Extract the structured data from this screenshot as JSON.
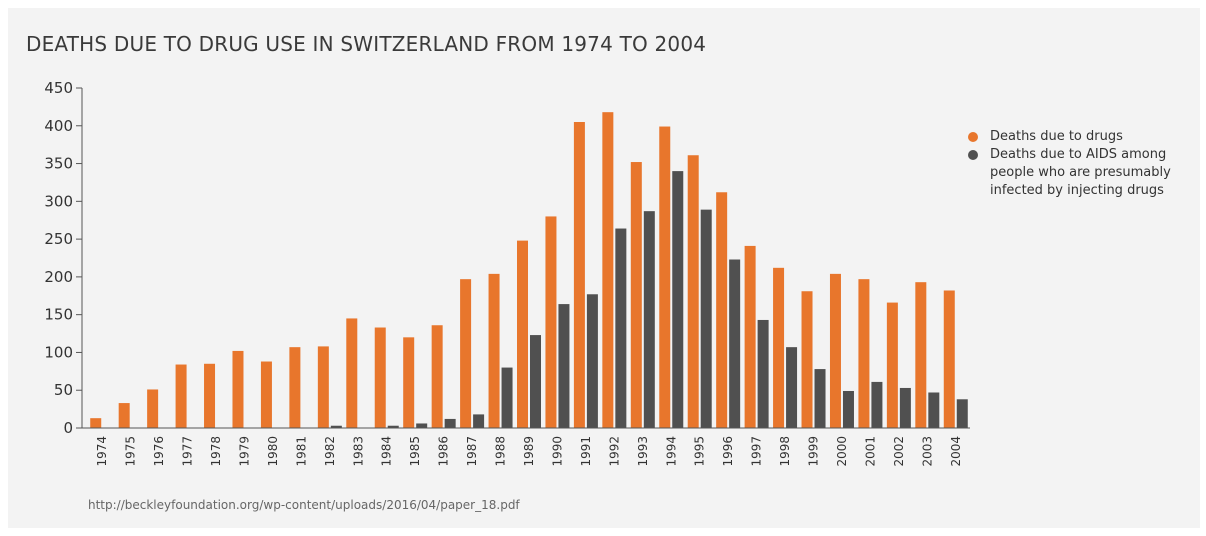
{
  "chart_data": {
    "type": "bar",
    "title": "DEATHS DUE TO DRUG USE IN SWITZERLAND FROM 1974 TO 2004",
    "xlabel": "",
    "ylabel": "",
    "ylim": [
      0,
      450
    ],
    "yticks": [
      0,
      50,
      100,
      150,
      200,
      250,
      300,
      350,
      400,
      450
    ],
    "grid": false,
    "legend_position": "right",
    "categories": [
      "1974",
      "1975",
      "1976",
      "1977",
      "1978",
      "1979",
      "1980",
      "1981",
      "1982",
      "1983",
      "1984",
      "1985",
      "1986",
      "1987",
      "1988",
      "1989",
      "1990",
      "1991",
      "1992",
      "1993",
      "1994",
      "1995",
      "1996",
      "1997",
      "1998",
      "1999",
      "2000",
      "2001",
      "2002",
      "2003",
      "2004"
    ],
    "series": [
      {
        "name": "Deaths due to drugs",
        "color": "#e8762c",
        "values": [
          13,
          33,
          51,
          84,
          85,
          102,
          88,
          107,
          108,
          145,
          133,
          120,
          136,
          197,
          204,
          248,
          280,
          405,
          418,
          352,
          399,
          361,
          312,
          241,
          212,
          181,
          204,
          197,
          166,
          193,
          182
        ]
      },
      {
        "name": "Deaths due to AIDS among people who are presumably infected by injecting drugs",
        "legend_lines": [
          "Deaths due to AIDS among",
          "people who are presumably",
          "infected by injecting drugs"
        ],
        "color": "#505050",
        "values": [
          0,
          0,
          0,
          0,
          0,
          0,
          0,
          0,
          3,
          0,
          3,
          6,
          12,
          18,
          80,
          123,
          164,
          177,
          264,
          287,
          340,
          289,
          223,
          143,
          107,
          78,
          49,
          61,
          53,
          47,
          38
        ]
      }
    ]
  },
  "source": "http://beckleyfoundation.org/wp-content/uploads/2016/04/paper_18.pdf",
  "colors": {
    "background": "#f3f3f3",
    "axis": "#555555"
  }
}
